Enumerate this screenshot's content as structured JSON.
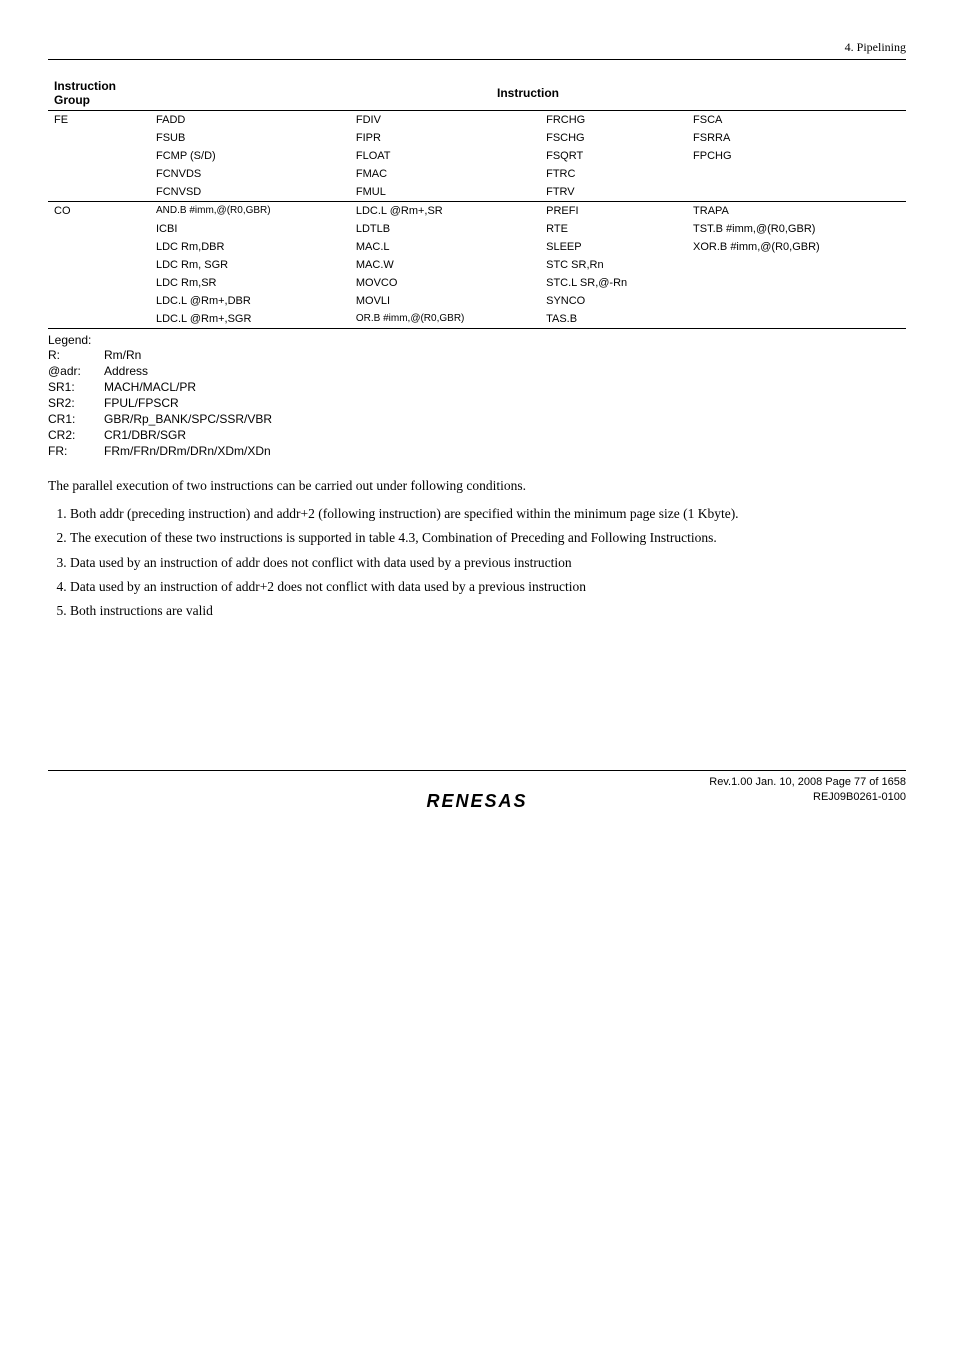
{
  "header": {
    "section": "4.  Pipelining"
  },
  "table": {
    "group_heading_line1": "Instruction",
    "group_heading_line2": "Group",
    "instr_heading": "Instruction",
    "groups": [
      {
        "name": "FE",
        "rows": [
          [
            "FADD",
            "FDIV",
            "FRCHG",
            "FSCA"
          ],
          [
            "FSUB",
            "FIPR",
            "FSCHG",
            "FSRRA"
          ],
          [
            "FCMP (S/D)",
            "FLOAT",
            "FSQRT",
            "FPCHG"
          ],
          [
            "FCNVDS",
            "FMAC",
            "FTRC",
            ""
          ],
          [
            "FCNVSD",
            "FMUL",
            "FTRV",
            ""
          ]
        ]
      },
      {
        "name": "CO",
        "rows": [
          [
            "AND.B #imm,@(R0,GBR)",
            "LDC.L @Rm+,SR",
            "PREFI",
            "TRAPA"
          ],
          [
            "ICBI",
            "LDTLB",
            "RTE",
            "TST.B #imm,@(R0,GBR)"
          ],
          [
            "LDC Rm,DBR",
            "MAC.L",
            "SLEEP",
            "XOR.B #imm,@(R0,GBR)"
          ],
          [
            "LDC Rm, SGR",
            "MAC.W",
            "STC SR,Rn",
            ""
          ],
          [
            "LDC Rm,SR",
            "MOVCO",
            "STC.L SR,@-Rn",
            ""
          ],
          [
            "LDC.L @Rm+,DBR",
            "MOVLI",
            "SYNCO",
            ""
          ],
          [
            "LDC.L @Rm+,SGR",
            "OR.B #imm,@(R0,GBR)",
            "TAS.B",
            ""
          ]
        ]
      }
    ]
  },
  "legend": {
    "title": "Legend:",
    "items": [
      {
        "key": "R:",
        "val": "Rm/Rn"
      },
      {
        "key": "@adr:",
        "val": "Address"
      },
      {
        "key": "SR1:",
        "val": "MACH/MACL/PR"
      },
      {
        "key": "SR2:",
        "val": "FPUL/FPSCR"
      },
      {
        "key": "CR1:",
        "val": "GBR/Rp_BANK/SPC/SSR/VBR"
      },
      {
        "key": "CR2:",
        "val": "CR1/DBR/SGR"
      },
      {
        "key": "FR:",
        "val": "FRm/FRn/DRm/DRn/XDm/XDn"
      }
    ]
  },
  "paragraph": "The parallel execution of two instructions can be carried out under following conditions.",
  "list": [
    "Both addr (preceding instruction) and addr+2 (following instruction) are specified within the minimum page size (1 Kbyte).",
    "The execution of these two instructions is supported in table 4.3, Combination of Preceding and Following Instructions.",
    "Data used by an instruction of addr does not conflict with data used by a previous instruction",
    "Data used by an instruction of addr+2 does not conflict with data used by a previous instruction",
    "Both instructions are valid"
  ],
  "footer": {
    "line1": "Rev.1.00  Jan. 10, 2008  Page 77 of 1658",
    "line2": "REJ09B0261-0100",
    "logo": "RENESAS"
  }
}
